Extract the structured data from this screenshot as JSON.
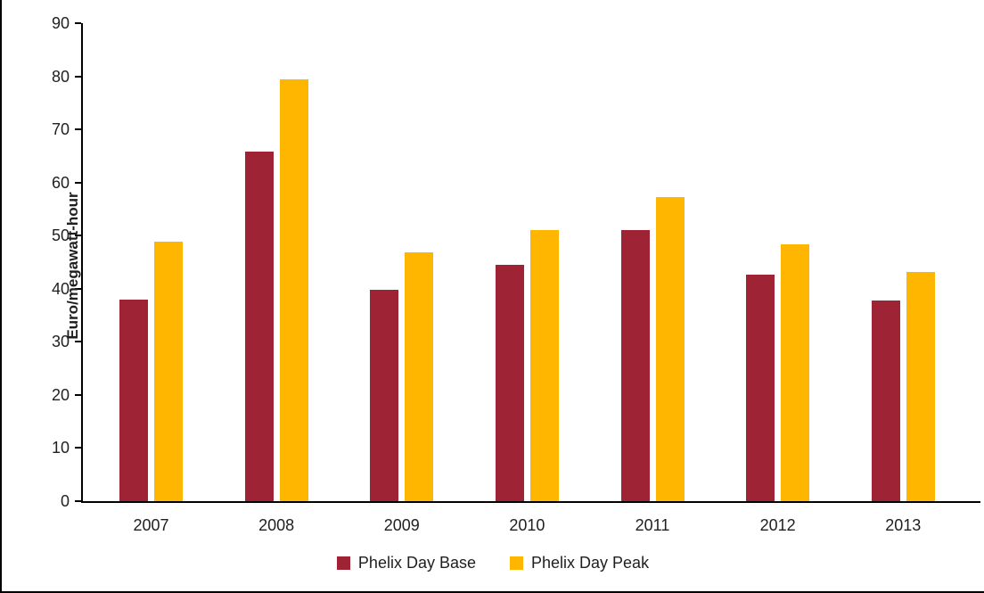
{
  "chart_data": {
    "type": "bar",
    "title": "",
    "categories": [
      "2007",
      "2008",
      "2009",
      "2010",
      "2011",
      "2012",
      "2013"
    ],
    "series": [
      {
        "name": "Phelix Day Base",
        "color": "#9E2335",
        "values": [
          38.0,
          65.9,
          39.8,
          44.5,
          51.1,
          42.6,
          37.8
        ]
      },
      {
        "name": "Phelix Day Peak",
        "color": "#FFB600",
        "values": [
          48.8,
          79.5,
          46.8,
          51.0,
          57.2,
          48.4,
          43.1
        ]
      }
    ],
    "xlabel": "",
    "ylabel": "Euro/megawatt-hour",
    "ylim": [
      0,
      90
    ],
    "yticks": [
      0,
      10,
      20,
      30,
      40,
      50,
      60,
      70,
      80,
      90
    ],
    "grid": false,
    "legend_position": "bottom",
    "axis_color": "#000000",
    "text_color": "#1f1f1f",
    "background_color": "#ffffff"
  }
}
